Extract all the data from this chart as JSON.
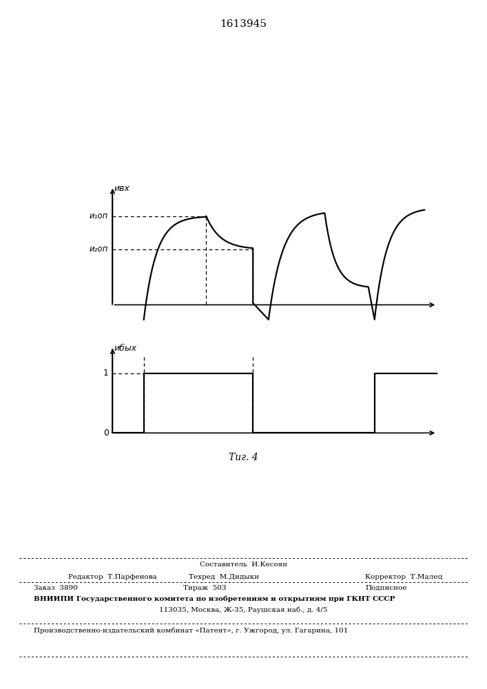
{
  "title": "1613945",
  "fig_label": "Τиг. 4",
  "background_color": "#ffffff",
  "top_signal_label": "ивх",
  "u1op_label": "и₁оп",
  "u2op_label": "и₂оп",
  "bottom_signal_label": "ибых",
  "label_1": "1",
  "label_0": "0",
  "footer_sestavitel": "Составитель  И.Кесоян",
  "footer_redaktor": "Редактор  Т.Парфенова",
  "footer_tehred": "Техред  М.Дидыки",
  "footer_korrektor": "Корректор  Т.Малец",
  "footer_zakaz": "Заказ  3890",
  "footer_tirazh": "Тираж  503",
  "footer_podpisnoe": "Подписное",
  "footer_vniipI": "ВНИИПИ Государственного комитета по изобретениям и открытиям при ГКНТ СССР",
  "footer_address": "113035, Москва, Ж-35, Раушская наб., д. 4/5",
  "footer_patent": "Производственно-издательский комбинат «Патент», г. Ужгород, ул. Гагарина, 101"
}
